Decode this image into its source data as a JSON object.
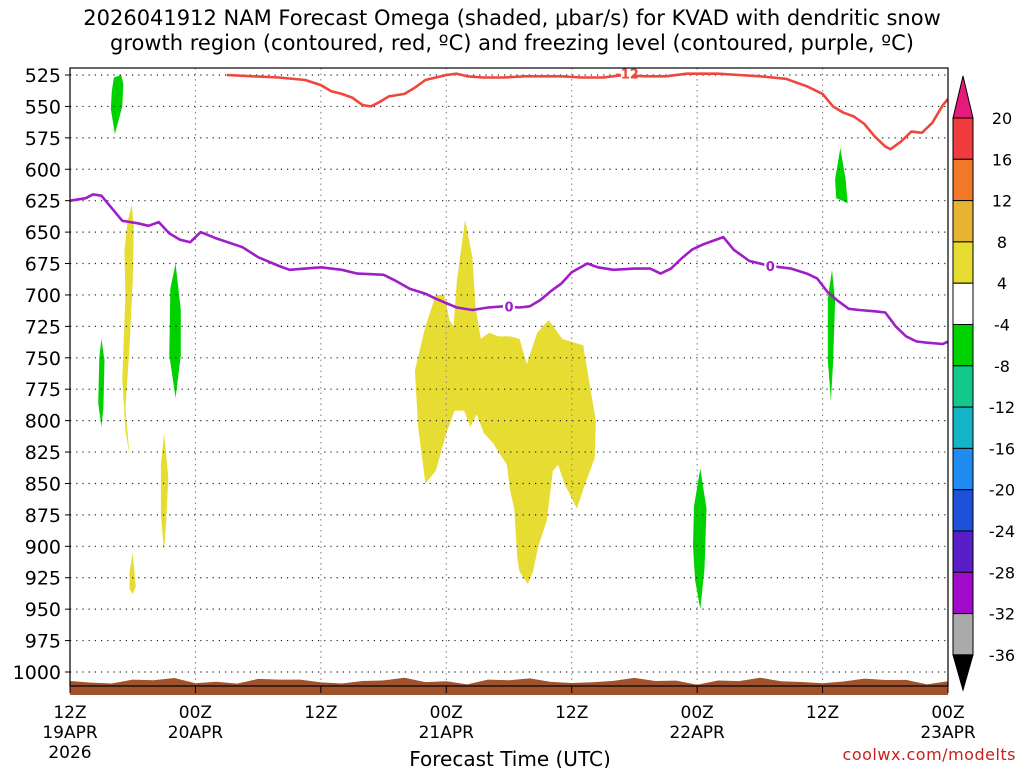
{
  "title_line1": "2026041912 NAM Forecast Omega (shaded, μbar/s) for KVAD with dendritic snow",
  "title_line2": "growth region (contoured, red, ºC) and freezing level (contoured, purple, ºC)",
  "credit": "coolwx.com/modelts",
  "colors": {
    "red_contour": "#f0463c",
    "purple_contour": "#a01ec8",
    "yellow_fill": "#e6dc32",
    "green_fill": "#00dc00",
    "ground": "#a0522d"
  },
  "chart_data": {
    "type": "area",
    "title": "2026041912 NAM Forecast Omega (shaded, μbar/s) for KVAD with dendritic snow growth region (contoured, red, ºC) and freezing level (contoured, purple, ºC)",
    "xlabel": "Forecast Time (UTC)",
    "ylabel": "",
    "x_units": "hours since 2026-04-19 12Z",
    "xlim": [
      0,
      84
    ],
    "ylim": [
      1000,
      525
    ],
    "y_scale": "inverted pressure (mb)",
    "grid": true,
    "x_ticks": [
      {
        "x": 0,
        "lines": [
          "12Z",
          "19APR",
          "2026"
        ]
      },
      {
        "x": 12,
        "lines": [
          "00Z",
          "20APR"
        ]
      },
      {
        "x": 24,
        "lines": [
          "12Z"
        ]
      },
      {
        "x": 36,
        "lines": [
          "00Z",
          "21APR"
        ]
      },
      {
        "x": 48,
        "lines": [
          "12Z"
        ]
      },
      {
        "x": 60,
        "lines": [
          "00Z",
          "22APR"
        ]
      },
      {
        "x": 72,
        "lines": [
          "12Z"
        ]
      },
      {
        "x": 84,
        "lines": [
          "00Z",
          "23APR"
        ]
      }
    ],
    "y_ticks": [
      "525",
      "550",
      "575",
      "600",
      "625",
      "650",
      "675",
      "700",
      "725",
      "750",
      "775",
      "800",
      "825",
      "850",
      "875",
      "900",
      "925",
      "950",
      "975",
      "1000"
    ],
    "colorbar": {
      "labels": [
        "20",
        "16",
        "12",
        "8",
        "4",
        "-4",
        "-8",
        "-12",
        "-16",
        "-20",
        "-24",
        "-28",
        "-32",
        "-36"
      ],
      "colors": [
        "#e6197d",
        "#f03c3c",
        "#f07828",
        "#e6b432",
        "#e6dc32",
        "#ffffff",
        "#00d200",
        "#14c88c",
        "#14b4c8",
        "#1e8cf0",
        "#1e50dc",
        "#5a1ec8",
        "#a00ac8",
        "#aaaaaa",
        "#000000"
      ]
    },
    "series": [
      {
        "label": "-12",
        "kind": "contour",
        "color": "#f0463c",
        "points": [
          [
            15.0,
            525
          ],
          [
            17.5,
            526
          ],
          [
            20.0,
            527
          ],
          [
            22.5,
            529
          ],
          [
            24.0,
            533
          ],
          [
            25.0,
            538
          ],
          [
            26.0,
            540
          ],
          [
            27.0,
            543
          ],
          [
            28.0,
            549
          ],
          [
            28.8,
            550
          ],
          [
            29.5,
            547
          ],
          [
            30.5,
            542
          ],
          [
            32.0,
            540
          ],
          [
            33.0,
            535
          ],
          [
            34.0,
            529
          ],
          [
            35.0,
            527
          ],
          [
            36.0,
            525
          ],
          [
            37.0,
            524
          ],
          [
            38.0,
            526
          ],
          [
            39.5,
            527
          ],
          [
            41.5,
            527
          ],
          [
            43.5,
            526
          ],
          [
            45.0,
            526
          ],
          [
            47.0,
            526
          ],
          [
            49.0,
            527
          ],
          [
            51.0,
            527
          ],
          [
            53.0,
            525
          ],
          [
            55.0,
            526
          ],
          [
            57.0,
            526
          ],
          [
            59.0,
            524
          ],
          [
            60.0,
            524
          ],
          [
            62.0,
            524
          ],
          [
            64.0,
            525
          ],
          [
            66.0,
            526
          ],
          [
            68.5,
            528
          ],
          [
            70.5,
            534
          ],
          [
            72.0,
            540
          ],
          [
            73.0,
            550
          ],
          [
            74.0,
            555
          ],
          [
            75.0,
            558
          ],
          [
            76.0,
            564
          ],
          [
            77.0,
            574
          ],
          [
            78.0,
            582
          ],
          [
            78.5,
            584
          ],
          [
            79.5,
            578
          ],
          [
            80.5,
            570
          ],
          [
            81.5,
            571
          ],
          [
            82.5,
            563
          ],
          [
            83.5,
            549
          ],
          [
            84.0,
            544
          ]
        ]
      },
      {
        "label": "0",
        "kind": "contour",
        "color": "#a01ec8",
        "points": [
          [
            0.0,
            625
          ],
          [
            1.5,
            623
          ],
          [
            2.2,
            620
          ],
          [
            3.0,
            621
          ],
          [
            4.0,
            631
          ],
          [
            5.0,
            641
          ],
          [
            6.5,
            643
          ],
          [
            7.5,
            645
          ],
          [
            8.5,
            642
          ],
          [
            9.5,
            651
          ],
          [
            10.5,
            656
          ],
          [
            11.5,
            658
          ],
          [
            12.5,
            650
          ],
          [
            14.0,
            655
          ],
          [
            16.5,
            662
          ],
          [
            18.0,
            670
          ],
          [
            20.0,
            677
          ],
          [
            21.0,
            680
          ],
          [
            22.5,
            679
          ],
          [
            24.0,
            678
          ],
          [
            26.0,
            680
          ],
          [
            27.5,
            683
          ],
          [
            30.0,
            684
          ],
          [
            31.0,
            688
          ],
          [
            32.5,
            695
          ],
          [
            34.0,
            699
          ],
          [
            35.0,
            703
          ],
          [
            37.0,
            710
          ],
          [
            38.5,
            712
          ],
          [
            40.0,
            710
          ],
          [
            41.5,
            709
          ],
          [
            43.0,
            710
          ],
          [
            44.0,
            709
          ],
          [
            45.0,
            704
          ],
          [
            46.0,
            697
          ],
          [
            47.0,
            691
          ],
          [
            48.0,
            682
          ],
          [
            49.5,
            675
          ],
          [
            50.5,
            678
          ],
          [
            52.0,
            680
          ],
          [
            54.0,
            679
          ],
          [
            55.5,
            679
          ],
          [
            56.5,
            683
          ],
          [
            57.5,
            679
          ],
          [
            58.5,
            671
          ],
          [
            59.5,
            664
          ],
          [
            60.5,
            660
          ],
          [
            61.5,
            657
          ],
          [
            62.5,
            654
          ],
          [
            63.5,
            664
          ],
          [
            65.0,
            673
          ],
          [
            67.0,
            677
          ],
          [
            69.0,
            679
          ],
          [
            70.5,
            683
          ],
          [
            71.5,
            687
          ],
          [
            72.5,
            698
          ],
          [
            73.5,
            705
          ],
          [
            74.5,
            711
          ],
          [
            75.5,
            712
          ],
          [
            77.0,
            713
          ],
          [
            78.0,
            714
          ],
          [
            79.0,
            725
          ],
          [
            80.0,
            733
          ],
          [
            81.0,
            737
          ],
          [
            82.0,
            738
          ],
          [
            83.5,
            739
          ],
          [
            84.0,
            737
          ]
        ]
      },
      {
        "label": "green fill",
        "kind": "fill",
        "color": "#00d200",
        "points": [
          [
            4.2,
            527
          ],
          [
            4.9,
            525
          ],
          [
            5.1,
            532
          ],
          [
            5.0,
            550
          ],
          [
            4.3,
            572
          ],
          [
            3.9,
            552
          ],
          [
            4.0,
            538
          ]
        ]
      },
      {
        "label": "yellow fill",
        "kind": "fill",
        "color": "#e6dc32",
        "points": [
          [
            5.5,
            642
          ],
          [
            5.9,
            628
          ],
          [
            6.1,
            645
          ],
          [
            6.0,
            690
          ],
          [
            5.7,
            740
          ],
          [
            5.3,
            790
          ],
          [
            5.7,
            828
          ],
          [
            5.3,
            808
          ],
          [
            5.0,
            767
          ],
          [
            5.3,
            700
          ],
          [
            5.2,
            665
          ]
        ]
      },
      {
        "label": "green fill",
        "kind": "fill",
        "color": "#00d200",
        "points": [
          [
            2.8,
            750
          ],
          [
            3.0,
            735
          ],
          [
            3.3,
            752
          ],
          [
            3.2,
            790
          ],
          [
            3.0,
            805
          ],
          [
            2.7,
            786
          ]
        ]
      },
      {
        "label": "green fill",
        "kind": "fill",
        "color": "#00d200",
        "points": [
          [
            9.6,
            695
          ],
          [
            10.1,
            675
          ],
          [
            10.6,
            712
          ],
          [
            10.6,
            748
          ],
          [
            10.1,
            782
          ],
          [
            9.5,
            748
          ]
        ]
      },
      {
        "label": "yellow fill",
        "kind": "fill",
        "color": "#e6dc32",
        "points": [
          [
            8.7,
            835
          ],
          [
            9.0,
            810
          ],
          [
            9.4,
            845
          ],
          [
            9.2,
            880
          ],
          [
            9.0,
            904
          ],
          [
            8.7,
            875
          ]
        ]
      },
      {
        "label": "yellow fill",
        "kind": "fill",
        "color": "#e6dc32",
        "points": [
          [
            5.7,
            920
          ],
          [
            6.0,
            905
          ],
          [
            6.3,
            932
          ],
          [
            6.0,
            938
          ],
          [
            5.7,
            934
          ]
        ]
      },
      {
        "label": "yellow fill",
        "kind": "fill",
        "color": "#e6dc32",
        "points": [
          [
            33.0,
            760
          ],
          [
            34.0,
            725
          ],
          [
            35.0,
            700
          ],
          [
            35.8,
            700
          ],
          [
            36.3,
            720
          ],
          [
            36.7,
            725
          ],
          [
            37.0,
            690
          ],
          [
            37.8,
            640
          ],
          [
            38.5,
            670
          ],
          [
            38.8,
            710
          ],
          [
            39.3,
            735
          ],
          [
            40.1,
            730
          ],
          [
            41.0,
            733
          ],
          [
            42.1,
            733
          ],
          [
            43.0,
            735
          ],
          [
            43.7,
            755
          ],
          [
            44.7,
            730
          ],
          [
            45.8,
            720
          ],
          [
            47.1,
            735
          ],
          [
            48.3,
            738
          ],
          [
            49.1,
            740
          ],
          [
            49.6,
            765
          ],
          [
            50.0,
            785
          ],
          [
            50.3,
            800
          ],
          [
            50.2,
            830
          ],
          [
            49.3,
            850
          ],
          [
            48.5,
            870
          ],
          [
            47.3,
            850
          ],
          [
            46.7,
            835
          ],
          [
            46.2,
            840
          ],
          [
            45.6,
            880
          ],
          [
            44.8,
            900
          ],
          [
            44.3,
            920
          ],
          [
            43.8,
            930
          ],
          [
            43.0,
            920
          ],
          [
            42.8,
            910
          ],
          [
            42.5,
            870
          ],
          [
            42.1,
            855
          ],
          [
            41.8,
            835
          ],
          [
            41.0,
            825
          ],
          [
            40.5,
            818
          ],
          [
            39.6,
            810
          ],
          [
            38.9,
            795
          ],
          [
            38.3,
            805
          ],
          [
            37.7,
            792
          ],
          [
            36.8,
            792
          ],
          [
            36.0,
            810
          ],
          [
            35.0,
            840
          ],
          [
            34.0,
            850
          ],
          [
            33.7,
            830
          ],
          [
            33.3,
            805
          ]
        ]
      },
      {
        "label": "green fill",
        "kind": "fill",
        "color": "#00d200",
        "points": [
          [
            59.7,
            868
          ],
          [
            60.3,
            838
          ],
          [
            60.9,
            870
          ],
          [
            60.7,
            918
          ],
          [
            60.3,
            950
          ],
          [
            59.8,
            927
          ],
          [
            59.6,
            900
          ]
        ]
      },
      {
        "label": "green fill",
        "kind": "fill",
        "color": "#00d200",
        "points": [
          [
            73.2,
            608
          ],
          [
            73.7,
            583
          ],
          [
            74.2,
            608
          ],
          [
            74.4,
            627
          ],
          [
            73.9,
            625
          ],
          [
            73.3,
            623
          ]
        ]
      },
      {
        "label": "green fill",
        "kind": "fill",
        "color": "#00d200",
        "points": [
          [
            72.5,
            703
          ],
          [
            72.9,
            680
          ],
          [
            73.2,
            705
          ],
          [
            73.0,
            755
          ],
          [
            72.8,
            784
          ],
          [
            72.5,
            752
          ]
        ]
      }
    ]
  }
}
